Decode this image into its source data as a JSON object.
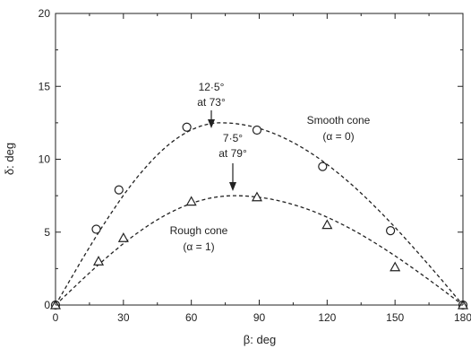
{
  "chart_data": {
    "type": "scatter",
    "title": "",
    "xlabel": "β: deg",
    "ylabel": "δ: deg",
    "xlim": [
      0,
      180
    ],
    "ylim": [
      0,
      20
    ],
    "x_ticks": [
      "0",
      "30",
      "60",
      "90",
      "120",
      "150",
      "180"
    ],
    "y_ticks": [
      "0",
      "5",
      "10",
      "15",
      "20"
    ],
    "grid": false,
    "legend": "none",
    "series": [
      {
        "marker": "circle",
        "color": "#222222",
        "x": [
          0,
          18,
          28,
          58,
          89,
          118,
          148,
          180
        ],
        "y": [
          0,
          5.2,
          7.9,
          12.2,
          12.0,
          9.5,
          5.1,
          0
        ],
        "curve": {
          "type": "dashed",
          "peak_x": 73,
          "peak_y": 12.5
        }
      },
      {
        "marker": "triangle",
        "color": "#222222",
        "x": [
          0,
          19,
          30,
          60,
          89,
          120,
          150,
          180
        ],
        "y": [
          0,
          3.0,
          4.6,
          7.1,
          7.4,
          5.5,
          2.6,
          0
        ],
        "curve": {
          "type": "dashed",
          "peak_x": 79,
          "peak_y": 7.5
        }
      }
    ],
    "annotations": [
      {
        "lines": [
          "12·5°",
          "at 73°"
        ],
        "x": 73,
        "y": 12.5,
        "arrow": true
      },
      {
        "lines": [
          "7·5°",
          "at 79°"
        ],
        "x": 79,
        "y": 7.5,
        "arrow": true
      },
      {
        "lines": [
          "Smooth cone",
          "(α = 0)"
        ]
      },
      {
        "lines": [
          "Rough cone",
          "(α = 1)"
        ]
      }
    ]
  }
}
